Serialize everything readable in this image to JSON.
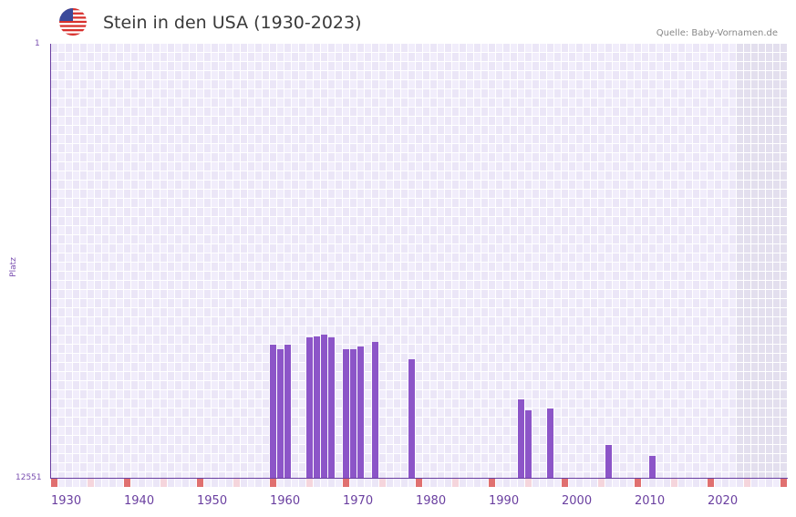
{
  "header": {
    "title": "Stein in den USA (1930-2023)",
    "source": "Quelle: Baby-Vornamen.de",
    "flag_icon": "us-flag-icon"
  },
  "colors": {
    "bar": "#8c55c8",
    "axis": "#6a3fa0",
    "decade_mark": "#e07070",
    "half_decade_mark": "#f5d5dc",
    "grid_cell_a": "#f1edfb",
    "grid_cell_b": "#ebe6f7",
    "future_cell": "#e3dfee"
  },
  "chart_data": {
    "type": "bar",
    "title": "Stein in den USA (1930-2023)",
    "xlabel": "",
    "ylabel": "Platz",
    "ylim": [
      12551,
      1
    ],
    "y_inverted": true,
    "x_range": [
      1930,
      2030
    ],
    "x_ticks": [
      "1930",
      "1940",
      "1950",
      "1960",
      "1970",
      "1980",
      "1990",
      "2000",
      "2010",
      "2020"
    ],
    "y_ticks": [
      "1",
      "12551"
    ],
    "grid": true,
    "legend": null,
    "categories": [
      1960,
      1961,
      1962,
      1965,
      1966,
      1967,
      1968,
      1970,
      1971,
      1972,
      1974,
      1979,
      1994,
      1995,
      1998,
      2006,
      2012
    ],
    "values": [
      8683,
      8815,
      8683,
      8473,
      8447,
      8394,
      8473,
      8815,
      8815,
      8736,
      8604,
      9104,
      10262,
      10578,
      10525,
      11577,
      11893
    ]
  },
  "axis": {
    "y_top_label": "1",
    "y_bottom_label": "12551",
    "y_title": "Platz",
    "x_labels": [
      "1930",
      "1940",
      "1950",
      "1960",
      "1970",
      "1980",
      "1990",
      "2000",
      "2010",
      "2020"
    ]
  }
}
